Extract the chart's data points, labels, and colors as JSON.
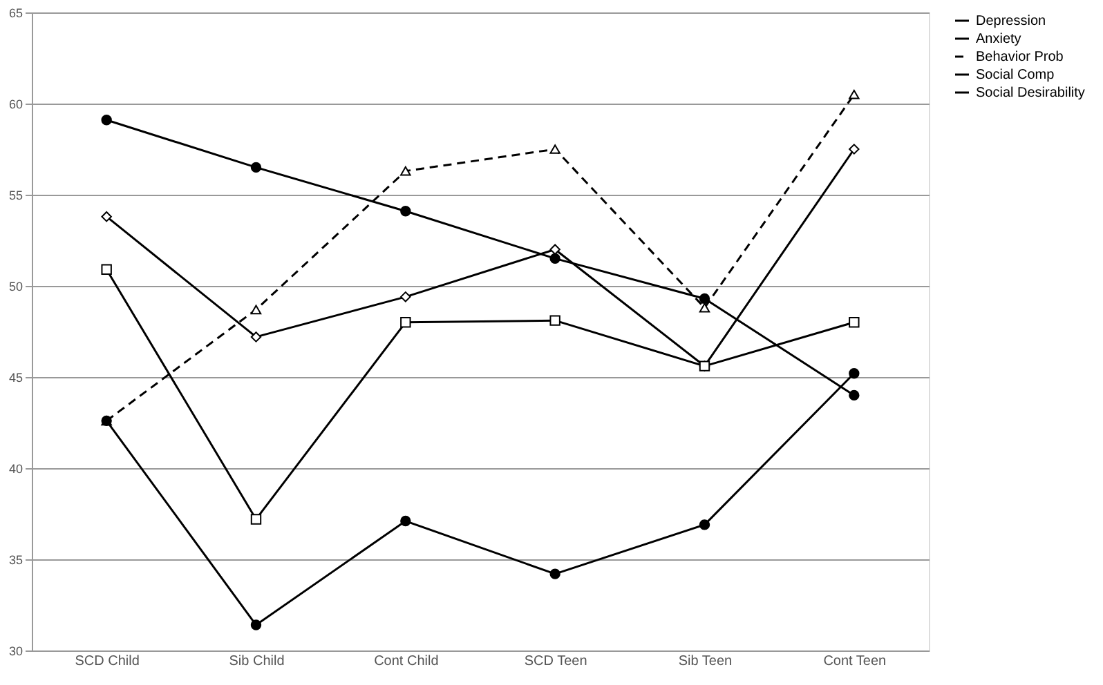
{
  "chart_data": {
    "type": "line",
    "categories": [
      "SCD Child",
      "Sib Child",
      "Cont Child",
      "SCD Teen",
      "Sib Teen",
      "Cont Teen"
    ],
    "series": [
      {
        "name": "Depression",
        "color": "#000000",
        "marker": "circle",
        "line_style": "solid",
        "values": [
          59.1,
          56.5,
          54.1,
          51.5,
          49.3,
          44.0
        ]
      },
      {
        "name": "Anxiety",
        "color": "#000000",
        "marker": "diamond",
        "line_style": "solid",
        "values": [
          53.8,
          47.2,
          49.4,
          52.0,
          45.6,
          57.5
        ]
      },
      {
        "name": "Behavior Prob",
        "color": "#000000",
        "marker": "triangle",
        "line_style": "dashed",
        "values": [
          42.6,
          48.7,
          56.3,
          57.5,
          48.8,
          60.5
        ]
      },
      {
        "name": "Social Comp",
        "color": "#000000",
        "marker": "square",
        "line_style": "solid",
        "values": [
          50.9,
          37.2,
          48.0,
          48.1,
          45.6,
          48.0
        ]
      },
      {
        "name": "Social Desirability",
        "color": "#000000",
        "marker": "circle",
        "line_style": "solid",
        "values": [
          42.6,
          31.4,
          37.1,
          34.2,
          36.9,
          45.2
        ]
      }
    ],
    "ylim": [
      30,
      65
    ],
    "yticks": [
      30,
      35,
      40,
      45,
      50,
      55,
      60,
      65
    ],
    "grid": "y",
    "legend": "right"
  }
}
